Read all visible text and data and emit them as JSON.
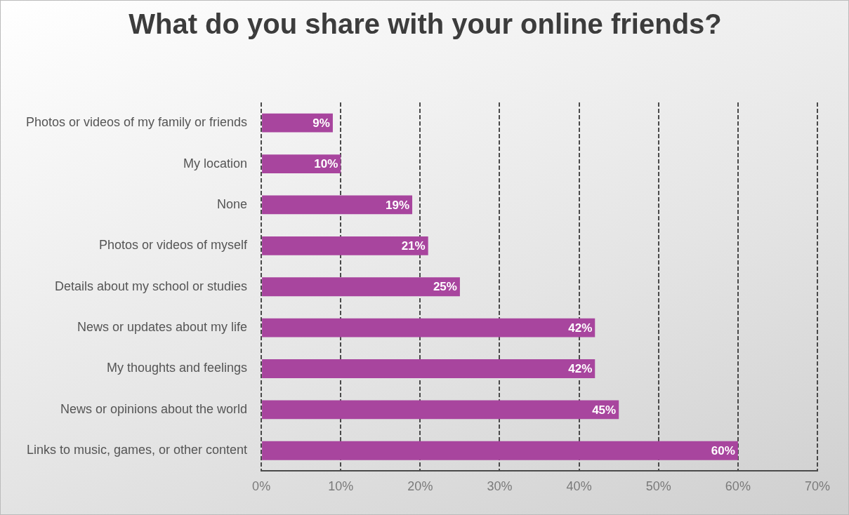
{
  "chart_data": {
    "type": "bar",
    "orientation": "horizontal",
    "title": "What do you share with your online friends?",
    "categories": [
      "Photos or videos of my family or friends",
      "My location",
      "None",
      "Photos or videos of myself",
      "Details about my school or studies",
      "News or updates about my life",
      "My thoughts and feelings",
      "News or opinions about the world",
      "Links to music, games, or other content"
    ],
    "values": [
      9,
      10,
      19,
      21,
      25,
      42,
      42,
      45,
      60
    ],
    "value_labels": [
      "9%",
      "10%",
      "19%",
      "21%",
      "25%",
      "42%",
      "42%",
      "45%",
      "60%"
    ],
    "color": "#a8459e",
    "xlim": [
      0,
      70
    ],
    "xticks": [
      {
        "value": 0,
        "label": "0%"
      },
      {
        "value": 10,
        "label": "10%"
      },
      {
        "value": 20,
        "label": "20%"
      },
      {
        "value": 30,
        "label": "30%"
      },
      {
        "value": 40,
        "label": "40%"
      },
      {
        "value": 50,
        "label": "50%"
      },
      {
        "value": 60,
        "label": "60%"
      },
      {
        "value": 70,
        "label": "70%"
      }
    ],
    "grid": "x"
  }
}
